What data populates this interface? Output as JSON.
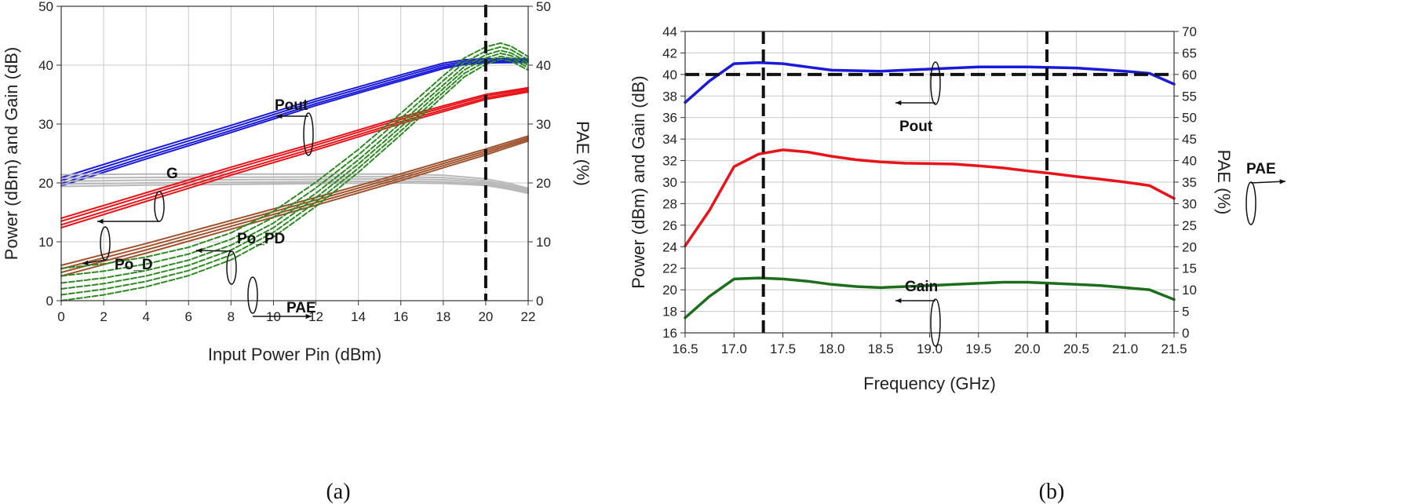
{
  "chart_data": [
    {
      "type": "line",
      "panel_label": "(a)",
      "xlabel": "Input Power Pin (dBm)",
      "ylabel": "Power (dBm) and Gain (dB)",
      "y2label": "PAE (%)",
      "xlim": [
        0,
        22
      ],
      "ylim": [
        0,
        50
      ],
      "y2lim": [
        0,
        50
      ],
      "xticks": [
        0,
        2,
        4,
        6,
        8,
        10,
        12,
        14,
        16,
        18,
        20,
        22
      ],
      "yticks": [
        0,
        10,
        20,
        30,
        40,
        50
      ],
      "y2ticks": [
        0,
        10,
        20,
        30,
        40,
        50
      ],
      "grid": true,
      "vline": 20,
      "series": [
        {
          "name": "Pout",
          "color": "#1a1adb",
          "axis": "left",
          "style": "solid",
          "x": [
            0,
            4,
            8,
            12,
            16,
            18,
            19,
            20,
            22
          ],
          "bundle_offsets": [
            0.2,
            -0.3,
            -0.8,
            -1.2
          ],
          "y": [
            20.7,
            25.2,
            29.6,
            34.1,
            38.2,
            40.2,
            40.8,
            41.0,
            41.0
          ]
        },
        {
          "name": "G",
          "color": "#b8b8b8",
          "axis": "left",
          "style": "solid",
          "x": [
            0,
            4,
            8,
            12,
            16,
            18,
            19,
            20,
            21,
            22
          ],
          "bundle_offsets": [
            1.6,
            1.0,
            0.5,
            0.0,
            -0.4
          ],
          "y": [
            19.8,
            20.0,
            20.1,
            20.2,
            20.3,
            20.2,
            20.0,
            19.8,
            19.2,
            18.4
          ]
        },
        {
          "name": "Po_D",
          "color": "#e8141a",
          "axis": "left",
          "style": "solid",
          "x": [
            0,
            4,
            8,
            12,
            16,
            18,
            20,
            22
          ],
          "bundle_offsets": [
            0.8,
            0.3,
            -0.3,
            -0.8
          ],
          "y": [
            13.2,
            17.6,
            22.0,
            26.2,
            30.6,
            32.6,
            34.6,
            35.8
          ]
        },
        {
          "name": "Po_PD",
          "color": "#a0522d",
          "axis": "left",
          "style": "solid",
          "x": [
            0,
            4,
            8,
            12,
            16,
            20,
            22
          ],
          "bundle_offsets": [
            1.0,
            0.4,
            -0.2,
            -0.8
          ],
          "y": [
            5.0,
            8.8,
            12.8,
            16.8,
            20.9,
            25.2,
            27.5
          ]
        },
        {
          "name": "PAE",
          "color": "#2e8b22",
          "axis": "right",
          "style": "dashed",
          "x": [
            0,
            2,
            4,
            6,
            8,
            10,
            12,
            14,
            16,
            18,
            19,
            20,
            20.7,
            21.2,
            22
          ],
          "bundle_offsets": [
            3.5,
            2.2,
            1.0,
            0.0,
            -1.0,
            -2.0
          ],
          "y": [
            2.0,
            2.9,
            4.2,
            6.0,
            8.6,
            12.4,
            17.5,
            23.2,
            29.5,
            36.0,
            39.2,
            41.2,
            42.0,
            41.6,
            40.0
          ]
        }
      ],
      "annotations": [
        "Pout",
        "G",
        "Po_D",
        "Po_PD",
        "PAE"
      ]
    },
    {
      "type": "line",
      "panel_label": "(b)",
      "xlabel": "Frequency (GHz)",
      "ylabel": "Power (dBm) and Gain (dB)",
      "y2label": "PAE (%)",
      "xlim": [
        16.5,
        21.5
      ],
      "ylim": [
        16,
        44
      ],
      "y2lim": [
        0,
        70
      ],
      "xticks": [
        16.5,
        17.0,
        17.5,
        18.0,
        18.5,
        19.0,
        19.5,
        20.0,
        20.5,
        21.0,
        21.5
      ],
      "yticks": [
        16,
        18,
        20,
        22,
        24,
        26,
        28,
        30,
        32,
        34,
        36,
        38,
        40,
        42,
        44
      ],
      "y2ticks": [
        0,
        5,
        10,
        15,
        20,
        25,
        30,
        35,
        40,
        45,
        50,
        55,
        60,
        65,
        70
      ],
      "grid": true,
      "vlines": [
        17.3,
        20.2
      ],
      "hline": 40,
      "series": [
        {
          "name": "Pout",
          "color": "#1a1adb",
          "axis": "left",
          "x": [
            16.5,
            16.75,
            17.0,
            17.25,
            17.5,
            17.75,
            18.0,
            18.5,
            19.0,
            19.5,
            19.75,
            20.0,
            20.5,
            21.0,
            21.25,
            21.5
          ],
          "y": [
            37.4,
            39.4,
            41.0,
            41.1,
            41.0,
            40.7,
            40.4,
            40.3,
            40.5,
            40.7,
            40.7,
            40.7,
            40.6,
            40.3,
            40.1,
            39.1
          ]
        },
        {
          "name": "PAE",
          "color": "#e8141a",
          "axis": "right",
          "x": [
            16.5,
            16.75,
            17.0,
            17.25,
            17.5,
            17.75,
            18.0,
            18.25,
            18.5,
            18.75,
            19.0,
            19.25,
            19.5,
            19.75,
            20.0,
            20.25,
            20.5,
            20.75,
            21.0,
            21.25,
            21.5
          ],
          "y": [
            20.2,
            28.5,
            38.6,
            41.5,
            42.5,
            42.0,
            41.0,
            40.2,
            39.7,
            39.4,
            39.3,
            39.2,
            38.8,
            38.3,
            37.6,
            37.0,
            36.3,
            35.7,
            35.0,
            34.2,
            31.2
          ]
        },
        {
          "name": "Gain",
          "color": "#1c6e1c",
          "axis": "left",
          "x": [
            16.5,
            16.75,
            17.0,
            17.25,
            17.5,
            17.75,
            18.0,
            18.25,
            18.5,
            18.75,
            19.0,
            19.25,
            19.5,
            19.75,
            20.0,
            20.25,
            20.5,
            20.75,
            21.0,
            21.25,
            21.5
          ],
          "y": [
            17.4,
            19.4,
            21.0,
            21.1,
            21.0,
            20.8,
            20.5,
            20.3,
            20.2,
            20.3,
            20.4,
            20.5,
            20.6,
            20.7,
            20.7,
            20.6,
            20.5,
            20.4,
            20.2,
            20.0,
            19.1
          ]
        }
      ],
      "annotations": [
        "Pout",
        "PAE",
        "Gain"
      ]
    }
  ]
}
